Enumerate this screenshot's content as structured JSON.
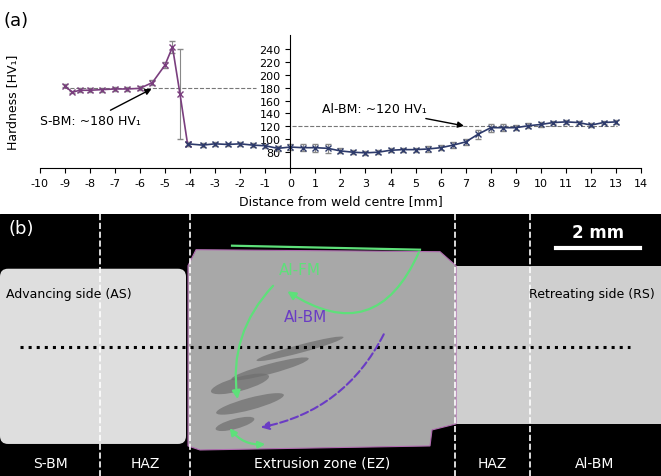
{
  "chart_data": {
    "type": "line",
    "panel_label": "(a)",
    "x_label": "Distance from weld centre [mm]",
    "y_label": "Hardness [HV₁]",
    "series": [
      {
        "color": "#7a3e7e",
        "marker": "x",
        "line_style": "solid",
        "x": [
          -9,
          -8.7,
          -8.4,
          -8,
          -7.5,
          -7,
          -6.5,
          -6,
          -5.5,
          -5,
          -4.7,
          -4.4,
          -4.1
        ],
        "values": [
          183,
          173,
          176,
          176,
          177,
          178,
          178,
          179,
          188,
          215,
          243,
          170,
          93
        ],
        "errors": [
          2,
          2,
          3,
          3,
          3,
          3,
          3,
          3,
          4,
          5,
          10,
          70,
          3
        ]
      },
      {
        "color": "#2d3a6b",
        "marker": "x",
        "line_style": "solid",
        "x": [
          -4.1,
          -3.5,
          -3,
          -2.5,
          -2,
          -1.5,
          -1,
          -0.5,
          0,
          0.5,
          1,
          1.5,
          2,
          2.5,
          3,
          3.5,
          4,
          4.5,
          5,
          5.5,
          6,
          6.5,
          7,
          7.5,
          8,
          8.5,
          9,
          9.5,
          10,
          10.5,
          11,
          11.5,
          12,
          12.5,
          13
        ],
        "values": [
          93,
          91,
          93,
          92,
          93,
          91,
          90,
          86,
          88,
          87,
          87,
          86,
          82,
          80,
          79,
          80,
          83,
          84,
          84,
          85,
          87,
          91,
          96,
          108,
          118,
          118,
          118,
          121,
          123,
          126,
          127,
          126,
          122,
          126,
          127
        ],
        "errors": [
          3,
          3,
          3,
          3,
          3,
          3,
          3,
          4,
          4,
          5,
          6,
          7,
          4,
          3,
          3,
          3,
          3,
          3,
          3,
          4,
          4,
          5,
          5,
          7,
          6,
          5,
          4,
          4,
          4,
          3,
          3,
          3,
          3,
          3,
          3
        ]
      }
    ],
    "reference_lines": [
      {
        "value": 180,
        "label": "S-BM: ~180 HV₁"
      },
      {
        "value": 120,
        "label": "Al-BM: ~120 HV₁"
      }
    ],
    "xlim": [
      -10,
      14
    ],
    "xticks": [
      -10,
      -9,
      -8,
      -7,
      -6,
      -5,
      -4,
      -3,
      -2,
      -1,
      0,
      1,
      2,
      3,
      4,
      5,
      6,
      7,
      8,
      9,
      10,
      11,
      12,
      13,
      14
    ],
    "ylim": [
      55,
      262
    ],
    "yticks": [
      80,
      100,
      120,
      140,
      160,
      180,
      200,
      220,
      240
    ],
    "grid": false
  },
  "diagram": {
    "panel_label": "(b)",
    "scale_bar": "2 mm",
    "sides": {
      "advancing": "Advancing side (AS)",
      "retreating": "Retreating side (RS)"
    },
    "flows": [
      {
        "label": "Al-FM",
        "color": "#5ee07a"
      },
      {
        "label": "Al-BM",
        "color": "#6a3cc4"
      }
    ],
    "zones": [
      "S-BM",
      "HAZ",
      "Extrusion zone (EZ)",
      "HAZ",
      "Al-BM"
    ]
  }
}
